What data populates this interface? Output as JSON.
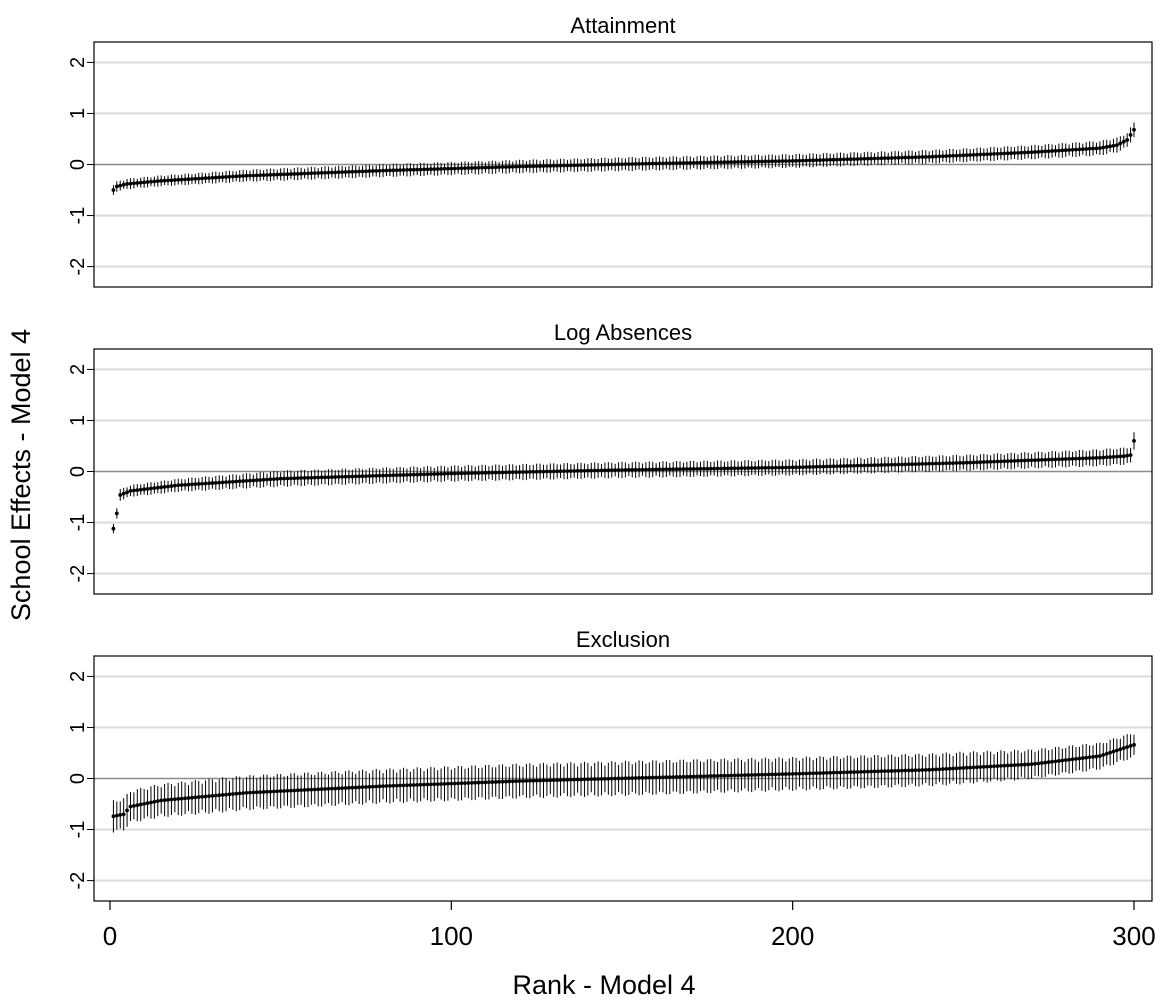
{
  "chart_data": {
    "type": "scatter",
    "ylabel": "School Effects - Model 4",
    "xlabel": "Rank - Model 4",
    "xlim": [
      0,
      300
    ],
    "xticks": [
      0,
      100,
      200,
      300
    ],
    "ylim": [
      -2.4,
      2.4
    ],
    "yticks": [
      2,
      1,
      0,
      -1,
      -2
    ],
    "ytick_labels": [
      "2",
      "1",
      "0",
      "-1",
      "-2"
    ],
    "n_schools": 300,
    "grid": "horizontal",
    "reference_line": 0,
    "colors": {
      "points": "#000000",
      "grid": "#dcdcdc",
      "zero_line": "#8c8c8c"
    },
    "panels": [
      {
        "title": "Attainment",
        "estimate_curve": [
          [
            1,
            -0.5
          ],
          [
            2,
            -0.43
          ],
          [
            5,
            -0.38
          ],
          [
            15,
            -0.32
          ],
          [
            40,
            -0.22
          ],
          [
            80,
            -0.12
          ],
          [
            120,
            -0.04
          ],
          [
            160,
            0.02
          ],
          [
            200,
            0.07
          ],
          [
            240,
            0.15
          ],
          [
            270,
            0.24
          ],
          [
            290,
            0.32
          ],
          [
            295,
            0.38
          ],
          [
            298,
            0.48
          ],
          [
            300,
            0.68
          ]
        ],
        "half_width": [
          [
            1,
            0.09
          ],
          [
            50,
            0.11
          ],
          [
            150,
            0.12
          ],
          [
            250,
            0.12
          ],
          [
            300,
            0.13
          ]
        ]
      },
      {
        "title": "Log Absences",
        "estimate_curve": [
          [
            1,
            -1.12
          ],
          [
            2,
            -0.82
          ],
          [
            3,
            -0.46
          ],
          [
            6,
            -0.38
          ],
          [
            20,
            -0.27
          ],
          [
            50,
            -0.14
          ],
          [
            100,
            -0.04
          ],
          [
            150,
            0.03
          ],
          [
            200,
            0.08
          ],
          [
            250,
            0.17
          ],
          [
            290,
            0.27
          ],
          [
            297,
            0.3
          ],
          [
            299,
            0.32
          ],
          [
            300,
            0.6
          ]
        ],
        "half_width": [
          [
            1,
            0.1
          ],
          [
            50,
            0.14
          ],
          [
            150,
            0.14
          ],
          [
            250,
            0.14
          ],
          [
            300,
            0.15
          ]
        ]
      },
      {
        "title": "Exclusion",
        "estimate_curve": [
          [
            1,
            -0.74
          ],
          [
            4,
            -0.7
          ],
          [
            6,
            -0.55
          ],
          [
            15,
            -0.43
          ],
          [
            40,
            -0.28
          ],
          [
            80,
            -0.15
          ],
          [
            120,
            -0.05
          ],
          [
            160,
            0.02
          ],
          [
            200,
            0.09
          ],
          [
            240,
            0.17
          ],
          [
            270,
            0.28
          ],
          [
            290,
            0.44
          ],
          [
            300,
            0.66
          ]
        ],
        "half_width": [
          [
            1,
            0.28
          ],
          [
            30,
            0.3
          ],
          [
            150,
            0.3
          ],
          [
            250,
            0.28
          ],
          [
            300,
            0.22
          ]
        ]
      }
    ]
  }
}
